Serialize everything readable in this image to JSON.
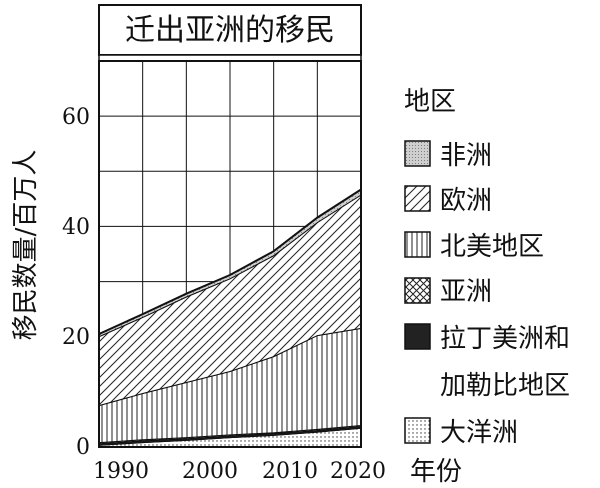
{
  "chart_data": {
    "type": "area",
    "stacked": true,
    "title": "迁出亚洲的移民",
    "ylabel": "移民数量/百万人",
    "xlabel": "年份",
    "x": [
      1990,
      1995,
      2000,
      2005,
      2010,
      2015,
      2020
    ],
    "xticks": [
      "1990",
      "2000",
      "2010",
      "2020"
    ],
    "yticks": [
      "0",
      "20",
      "40",
      "60"
    ],
    "ylim": [
      0,
      70
    ],
    "xlim": [
      1990,
      2020
    ],
    "grid": true,
    "legend_title": "地区",
    "legend_position": "right",
    "series": [
      {
        "name": "大洋洲",
        "pattern": "dots",
        "values": [
          0.3,
          0.8,
          1.2,
          1.7,
          2.1,
          2.7,
          3.4
        ]
      },
      {
        "name": "拉丁美洲和加勒比地区",
        "pattern": "solid",
        "values": [
          0.3,
          0.3,
          0.3,
          0.3,
          0.3,
          0.3,
          0.3
        ]
      },
      {
        "name": "亚洲",
        "pattern": "crosshatch",
        "values": [
          0.2,
          0.2,
          0.2,
          0.2,
          0.2,
          0.2,
          0.2
        ]
      },
      {
        "name": "北美地区",
        "pattern": "vertical",
        "values": [
          6.7,
          8.4,
          10.0,
          11.5,
          13.8,
          17.0,
          17.6
        ]
      },
      {
        "name": "欧洲",
        "pattern": "diagonal",
        "values": [
          12.5,
          13.8,
          15.5,
          16.8,
          18.3,
          20.5,
          24.2
        ]
      },
      {
        "name": "非洲",
        "pattern": "gray",
        "values": [
          0.5,
          0.6,
          0.6,
          0.7,
          0.8,
          0.9,
          1.0
        ]
      }
    ],
    "legend_order": [
      "非洲",
      "欧洲",
      "北美地区",
      "亚洲",
      "拉丁美洲和加勒比地区",
      "大洋洲"
    ]
  }
}
